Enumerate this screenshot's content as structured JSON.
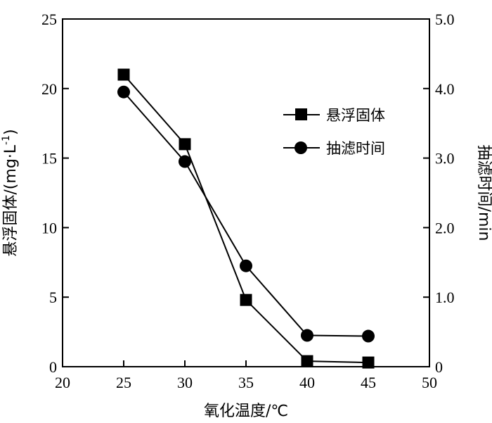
{
  "chart_data": {
    "type": "line",
    "title": "",
    "xlabel": "氧化温度/℃",
    "ylabel": "悬浮固体/(mg·L",
    "ylabel_sup": "-1",
    "ylabel_close": ")",
    "y2label": "抽滤时间/min",
    "xlim": [
      20,
      50
    ],
    "ylim": [
      0,
      25
    ],
    "y2lim": [
      0,
      5.0
    ],
    "xticks": [
      "20",
      "25",
      "30",
      "35",
      "40",
      "45",
      "50"
    ],
    "yticks": [
      "0",
      "5",
      "10",
      "15",
      "20",
      "25"
    ],
    "y2ticks": [
      "0",
      "1.0",
      "2.0",
      "3.0",
      "4.0",
      "5.0"
    ],
    "grid": false,
    "legend_position": "right-upper",
    "series": [
      {
        "name": "悬浮固体",
        "axis": "left",
        "marker": "square",
        "color": "#000000",
        "x": [
          25,
          30,
          35,
          40,
          45
        ],
        "values": [
          21.0,
          16.0,
          4.8,
          0.4,
          0.3
        ]
      },
      {
        "name": "抽滤时间",
        "axis": "right",
        "marker": "circle",
        "color": "#000000",
        "x": [
          25,
          30,
          35,
          40,
          45
        ],
        "values": [
          3.95,
          2.95,
          1.45,
          0.45,
          0.44
        ]
      }
    ]
  }
}
